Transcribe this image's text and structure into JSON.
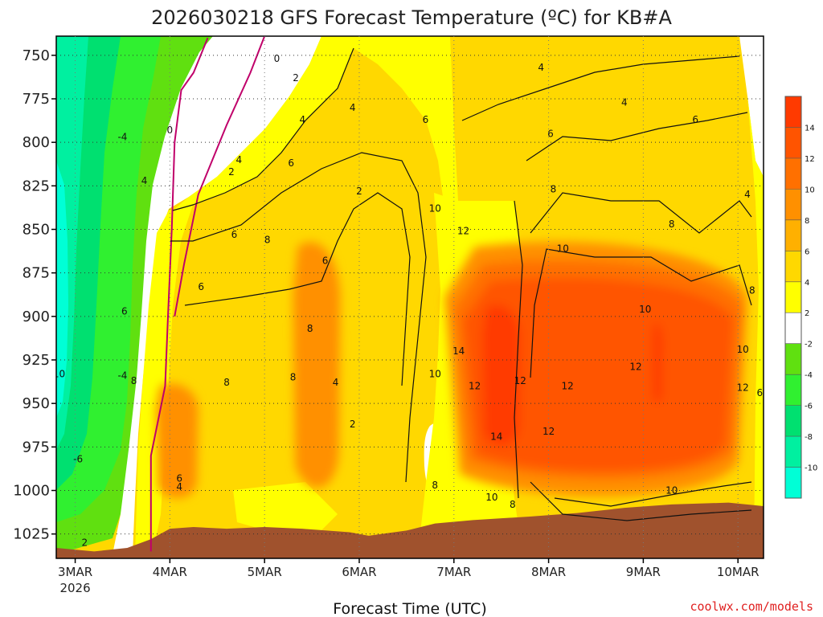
{
  "chart_data": {
    "type": "heatmap",
    "title": "2026030218 GFS Forecast Temperature (ºC) for KB#A",
    "xlabel": "Forecast Time (UTC)",
    "ylabel": "",
    "credit": "coolwx.com/models",
    "x_ticks": [
      "3MAR",
      "4MAR",
      "5MAR",
      "6MAR",
      "7MAR",
      "8MAR",
      "9MAR",
      "10MAR"
    ],
    "x_year": "2026",
    "xlim": [
      -0.2,
      7.27
    ],
    "y_ticks": [
      750,
      775,
      800,
      825,
      850,
      875,
      900,
      925,
      950,
      975,
      1000,
      1025
    ],
    "ylim": [
      739,
      1039
    ],
    "colorbar": {
      "levels": [
        -10,
        -8,
        -6,
        -4,
        -2,
        2,
        4,
        6,
        8,
        10,
        12,
        14
      ],
      "colors": [
        "#00ffd6",
        "#00f0a0",
        "#00e070",
        "#30f030",
        "#60e010",
        "#ffffff",
        "#ffff00",
        "#ffd800",
        "#ffb000",
        "#ff9000",
        "#ff7000",
        "#ff5400",
        "#ff3a00"
      ]
    },
    "terrain_color": "#a0522d",
    "bands": [
      {
        "value": 8,
        "x0": 3.9,
        "x1": 7.1,
        "p0": 860,
        "p1": 1005
      },
      {
        "value": 10,
        "x0": 4.0,
        "x1": 7.05,
        "p0": 870,
        "p1": 995
      },
      {
        "value": 12,
        "x0": 4.1,
        "x1": 6.95,
        "p0": 880,
        "p1": 990
      },
      {
        "value": 14,
        "x0": 4.3,
        "x1": 4.7,
        "p0": 895,
        "p1": 975
      },
      {
        "value": 14,
        "x0": 6.1,
        "x1": 6.2,
        "p0": 905,
        "p1": 950
      },
      {
        "value": 8,
        "x0": 2.3,
        "x1": 2.8,
        "p0": 860,
        "p1": 1000
      },
      {
        "value": 8,
        "x0": 0.85,
        "x1": 1.3,
        "p0": 940,
        "p1": 1005
      }
    ],
    "surface": [
      {
        "x": -0.2,
        "p": 1033
      },
      {
        "x": 0.2,
        "p": 1035
      },
      {
        "x": 0.55,
        "p": 1033
      },
      {
        "x": 0.8,
        "p": 1028
      },
      {
        "x": 1.0,
        "p": 1022
      },
      {
        "x": 1.25,
        "p": 1021
      },
      {
        "x": 1.6,
        "p": 1022
      },
      {
        "x": 2.0,
        "p": 1021
      },
      {
        "x": 2.4,
        "p": 1022
      },
      {
        "x": 2.9,
        "p": 1024
      },
      {
        "x": 3.1,
        "p": 1026
      },
      {
        "x": 3.5,
        "p": 1023
      },
      {
        "x": 3.8,
        "p": 1019
      },
      {
        "x": 4.2,
        "p": 1017
      },
      {
        "x": 4.8,
        "p": 1015
      },
      {
        "x": 5.3,
        "p": 1013
      },
      {
        "x": 5.8,
        "p": 1010
      },
      {
        "x": 6.3,
        "p": 1008
      },
      {
        "x": 6.9,
        "p": 1007
      },
      {
        "x": 7.27,
        "p": 1009
      }
    ],
    "freezing_lines": [
      [
        [
          0.8,
          1035
        ],
        [
          0.8,
          980
        ],
        [
          0.95,
          940
        ],
        [
          0.98,
          900
        ],
        [
          1.02,
          850
        ],
        [
          1.05,
          800
        ],
        [
          1.12,
          770
        ],
        [
          1.25,
          760
        ],
        [
          1.4,
          740
        ]
      ],
      [
        [
          2.0,
          739
        ],
        [
          1.85,
          760
        ],
        [
          1.6,
          790
        ],
        [
          1.3,
          830
        ],
        [
          1.15,
          870
        ],
        [
          1.05,
          900
        ]
      ]
    ],
    "contour_labels": [
      {
        "text": "0",
        "x": 2.13,
        "p": 752
      },
      {
        "text": "0",
        "x": 1.0,
        "p": 793
      },
      {
        "text": "-4",
        "x": 0.5,
        "p": 797
      },
      {
        "text": "-4",
        "x": 0.5,
        "p": 934
      },
      {
        "text": "10",
        "x": -0.17,
        "p": 933
      },
      {
        "text": "-6",
        "x": 0.03,
        "p": 982
      },
      {
        "text": "2",
        "x": 0.1,
        "p": 1030
      },
      {
        "text": "2",
        "x": 2.33,
        "p": 763
      },
      {
        "text": "2",
        "x": 1.65,
        "p": 817
      },
      {
        "text": "4",
        "x": 1.73,
        "p": 810
      },
      {
        "text": "4",
        "x": 2.4,
        "p": 787
      },
      {
        "text": "4",
        "x": 2.93,
        "p": 780
      },
      {
        "text": "4",
        "x": 0.73,
        "p": 822
      },
      {
        "text": "4",
        "x": 1.1,
        "p": 998
      },
      {
        "text": "6",
        "x": 2.28,
        "p": 812
      },
      {
        "text": "6",
        "x": 1.68,
        "p": 853
      },
      {
        "text": "6",
        "x": 1.33,
        "p": 883
      },
      {
        "text": "6",
        "x": 0.52,
        "p": 897
      },
      {
        "text": "6",
        "x": 2.64,
        "p": 868
      },
      {
        "text": "6",
        "x": 1.1,
        "p": 993
      },
      {
        "text": "8",
        "x": 2.03,
        "p": 856
      },
      {
        "text": "8",
        "x": 2.48,
        "p": 907
      },
      {
        "text": "8",
        "x": 2.3,
        "p": 935
      },
      {
        "text": "8",
        "x": 1.6,
        "p": 938
      },
      {
        "text": "8",
        "x": 0.62,
        "p": 937
      },
      {
        "text": "8",
        "x": 3.8,
        "p": 997
      },
      {
        "text": "4",
        "x": 2.75,
        "p": 938
      },
      {
        "text": "2",
        "x": 3.0,
        "p": 828
      },
      {
        "text": "2",
        "x": 2.93,
        "p": 962
      },
      {
        "text": "6",
        "x": 3.7,
        "p": 787
      },
      {
        "text": "6",
        "x": 5.02,
        "p": 795
      },
      {
        "text": "6",
        "x": 6.55,
        "p": 787
      },
      {
        "text": "4",
        "x": 5.8,
        "p": 777
      },
      {
        "text": "4",
        "x": 4.92,
        "p": 757
      },
      {
        "text": "4",
        "x": 7.1,
        "p": 830
      },
      {
        "text": "8",
        "x": 5.05,
        "p": 827
      },
      {
        "text": "8",
        "x": 6.3,
        "p": 847
      },
      {
        "text": "8",
        "x": 7.15,
        "p": 885
      },
      {
        "text": "10",
        "x": 3.8,
        "p": 838
      },
      {
        "text": "10",
        "x": 5.15,
        "p": 861
      },
      {
        "text": "10",
        "x": 6.02,
        "p": 896
      },
      {
        "text": "10",
        "x": 7.05,
        "p": 919
      },
      {
        "text": "10",
        "x": 3.8,
        "p": 933
      },
      {
        "text": "10",
        "x": 4.4,
        "p": 1004
      },
      {
        "text": "10",
        "x": 6.3,
        "p": 1000
      },
      {
        "text": "12",
        "x": 4.1,
        "p": 851
      },
      {
        "text": "12",
        "x": 4.22,
        "p": 940
      },
      {
        "text": "12",
        "x": 4.7,
        "p": 937
      },
      {
        "text": "12",
        "x": 5.2,
        "p": 940
      },
      {
        "text": "12",
        "x": 5.0,
        "p": 966
      },
      {
        "text": "12",
        "x": 5.92,
        "p": 929
      },
      {
        "text": "12",
        "x": 7.05,
        "p": 941
      },
      {
        "text": "14",
        "x": 4.05,
        "p": 920
      },
      {
        "text": "14",
        "x": 4.45,
        "p": 969
      },
      {
        "text": "8",
        "x": 4.62,
        "p": 1008
      },
      {
        "text": "6",
        "x": 7.23,
        "p": 944
      }
    ]
  }
}
